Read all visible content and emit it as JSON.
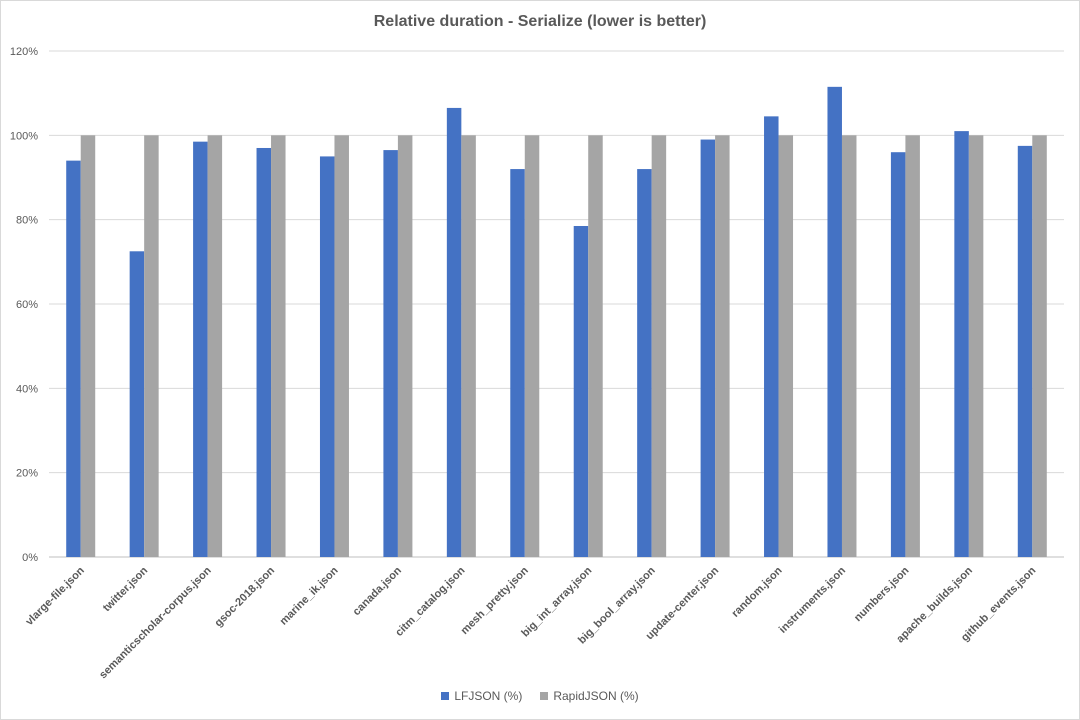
{
  "chart_data": {
    "type": "bar",
    "title": "Relative duration - Serialize (lower is better)",
    "xlabel": "",
    "ylabel": "",
    "ylim": [
      0,
      120
    ],
    "y_ticks": [
      0,
      20,
      40,
      60,
      80,
      100,
      120
    ],
    "y_tick_suffix": "%",
    "grid": true,
    "legend_position": "bottom",
    "categories": [
      "vlarge-file.json",
      "twitter.json",
      "semanticscholar-corpus.json",
      "gsoc-2018.json",
      "marine_ik.json",
      "canada.json",
      "citm_catalog.json",
      "mesh_pretty.json",
      "big_int_array.json",
      "big_bool_array.json",
      "update-center.json",
      "random.json",
      "instruments.json",
      "numbers.json",
      "apache_builds.json",
      "github_events.json"
    ],
    "series": [
      {
        "name": "LFJSON (%)",
        "color": "#4472c4",
        "values": [
          94,
          72.5,
          98.5,
          97,
          95,
          96.5,
          106.5,
          92,
          78.5,
          92,
          99,
          104.5,
          111.5,
          96,
          101,
          97.5
        ]
      },
      {
        "name": "RapidJSON (%)",
        "color": "#a5a5a5",
        "values": [
          100,
          100,
          100,
          100,
          100,
          100,
          100,
          100,
          100,
          100,
          100,
          100,
          100,
          100,
          100,
          100
        ]
      }
    ]
  }
}
